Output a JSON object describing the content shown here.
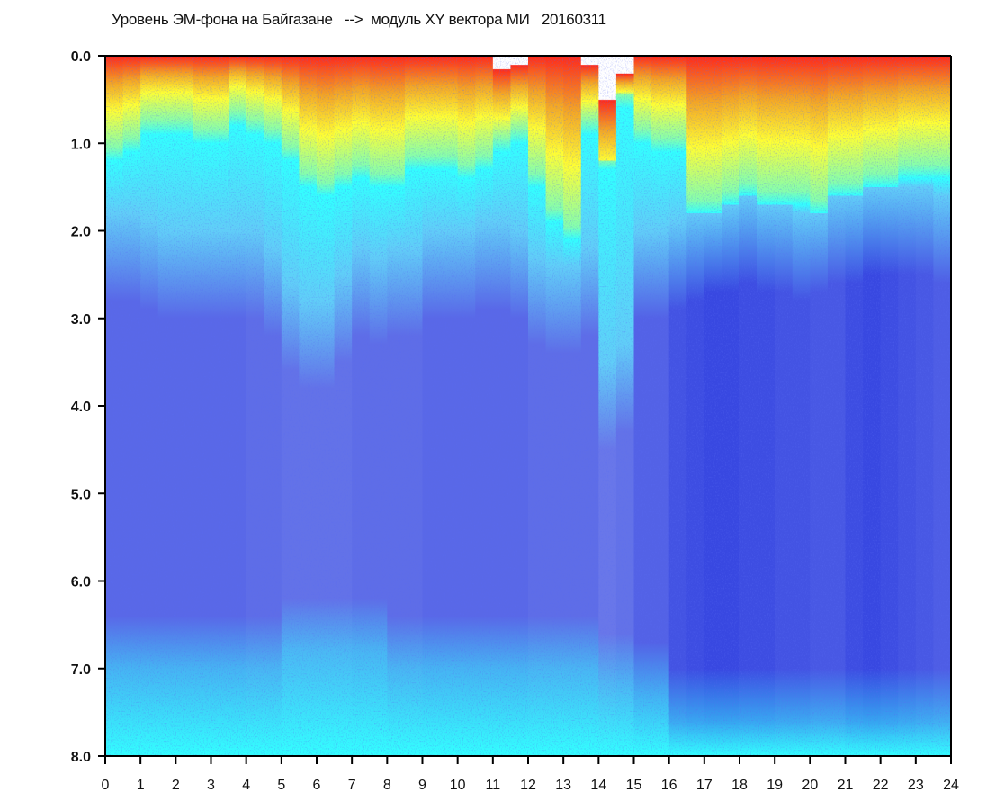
{
  "chart_data": {
    "type": "heatmap",
    "title": "Уровень ЭМ-фона на Байгазане   -->  модуль XY вектора МИ   20160311",
    "xlabel": "",
    "ylabel": "",
    "xlim": [
      0,
      24
    ],
    "ylim": [
      0,
      8
    ],
    "y_inverted": true,
    "x_ticks": [
      "0",
      "1",
      "2",
      "3",
      "4",
      "5",
      "6",
      "7",
      "8",
      "9",
      "10",
      "11",
      "12",
      "13",
      "14",
      "15",
      "16",
      "17",
      "18",
      "19",
      "20",
      "21",
      "22",
      "23",
      "24"
    ],
    "y_ticks": [
      "0.0",
      "1.0",
      "2.0",
      "3.0",
      "4.0",
      "5.0",
      "6.0",
      "7.0",
      "8.0"
    ],
    "column_width": 0.5,
    "warm_depth": [
      0.9,
      0.8,
      0.6,
      0.6,
      0.6,
      0.7,
      0.7,
      0.5,
      0.6,
      0.7,
      0.9,
      1.2,
      1.3,
      1.2,
      1.1,
      1.2,
      1.2,
      1.0,
      1.0,
      1.0,
      1.1,
      1.0,
      0.8,
      0.7,
      1.2,
      1.6,
      1.8,
      0.6,
      1.0,
      0.3,
      0.7,
      0.8,
      0.8,
      1.5,
      1.5,
      1.4,
      1.3,
      1.4,
      1.4,
      1.4,
      1.5,
      1.3,
      1.3,
      1.2,
      1.2,
      1.1,
      1.1,
      1.1
    ],
    "cyan_depth": [
      1.8,
      1.8,
      1.9,
      2.0,
      2.0,
      2.0,
      2.0,
      2.0,
      2.0,
      2.2,
      2.6,
      2.8,
      2.8,
      2.5,
      2.2,
      2.3,
      2.2,
      2.2,
      2.0,
      2.0,
      2.0,
      1.9,
      1.9,
      2.0,
      2.3,
      2.4,
      2.4,
      2.2,
      3.5,
      3.3,
      2.0,
      2.0,
      1.9,
      1.8,
      1.7,
      1.7,
      1.6,
      1.7,
      1.7,
      1.8,
      1.7,
      1.6,
      1.6,
      1.5,
      1.5,
      1.5,
      1.5,
      1.6
    ],
    "bottom_cyan_start": [
      7.0,
      7.0,
      7.0,
      7.0,
      7.0,
      7.0,
      7.0,
      7.0,
      7.0,
      7.0,
      6.8,
      6.8,
      6.8,
      6.8,
      6.8,
      6.8,
      7.0,
      7.0,
      7.0,
      7.0,
      7.0,
      7.0,
      7.0,
      7.0,
      7.0,
      7.0,
      7.0,
      7.0,
      7.2,
      7.2,
      7.3,
      7.3,
      7.6,
      7.6,
      7.6,
      7.6,
      7.6,
      7.6,
      7.6,
      7.6,
      7.6,
      7.6,
      7.6,
      7.6,
      7.6,
      7.6,
      7.6,
      7.6
    ],
    "blue_intensity": [
      0.5,
      0.5,
      0.5,
      0.5,
      0.5,
      0.5,
      0.5,
      0.5,
      0.45,
      0.45,
      0.4,
      0.4,
      0.4,
      0.4,
      0.45,
      0.45,
      0.45,
      0.45,
      0.5,
      0.5,
      0.5,
      0.5,
      0.5,
      0.5,
      0.45,
      0.45,
      0.45,
      0.45,
      0.35,
      0.4,
      0.55,
      0.55,
      0.7,
      0.75,
      0.8,
      0.8,
      0.75,
      0.75,
      0.7,
      0.7,
      0.65,
      0.65,
      0.75,
      0.8,
      0.75,
      0.7,
      0.65,
      0.6
    ],
    "top_gap": [
      0,
      0,
      0,
      0,
      0,
      0,
      0,
      0,
      0,
      0,
      0,
      0,
      0,
      0,
      0,
      0,
      0,
      0,
      0,
      0,
      0,
      0,
      0.15,
      0.1,
      0,
      0,
      0,
      0.1,
      0.5,
      0.2,
      0,
      0,
      0,
      0,
      0,
      0,
      0,
      0,
      0,
      0,
      0,
      0,
      0,
      0,
      0,
      0,
      0,
      0
    ],
    "colors": {
      "red": "#ff2a1a",
      "orange": "#f5a623",
      "yellow": "#ffff33",
      "green": "#1e9e1e",
      "cyan": "#33ffff",
      "light_blue": "#8f9cf0",
      "blue": "#2233dd",
      "axis": "#000000"
    }
  }
}
